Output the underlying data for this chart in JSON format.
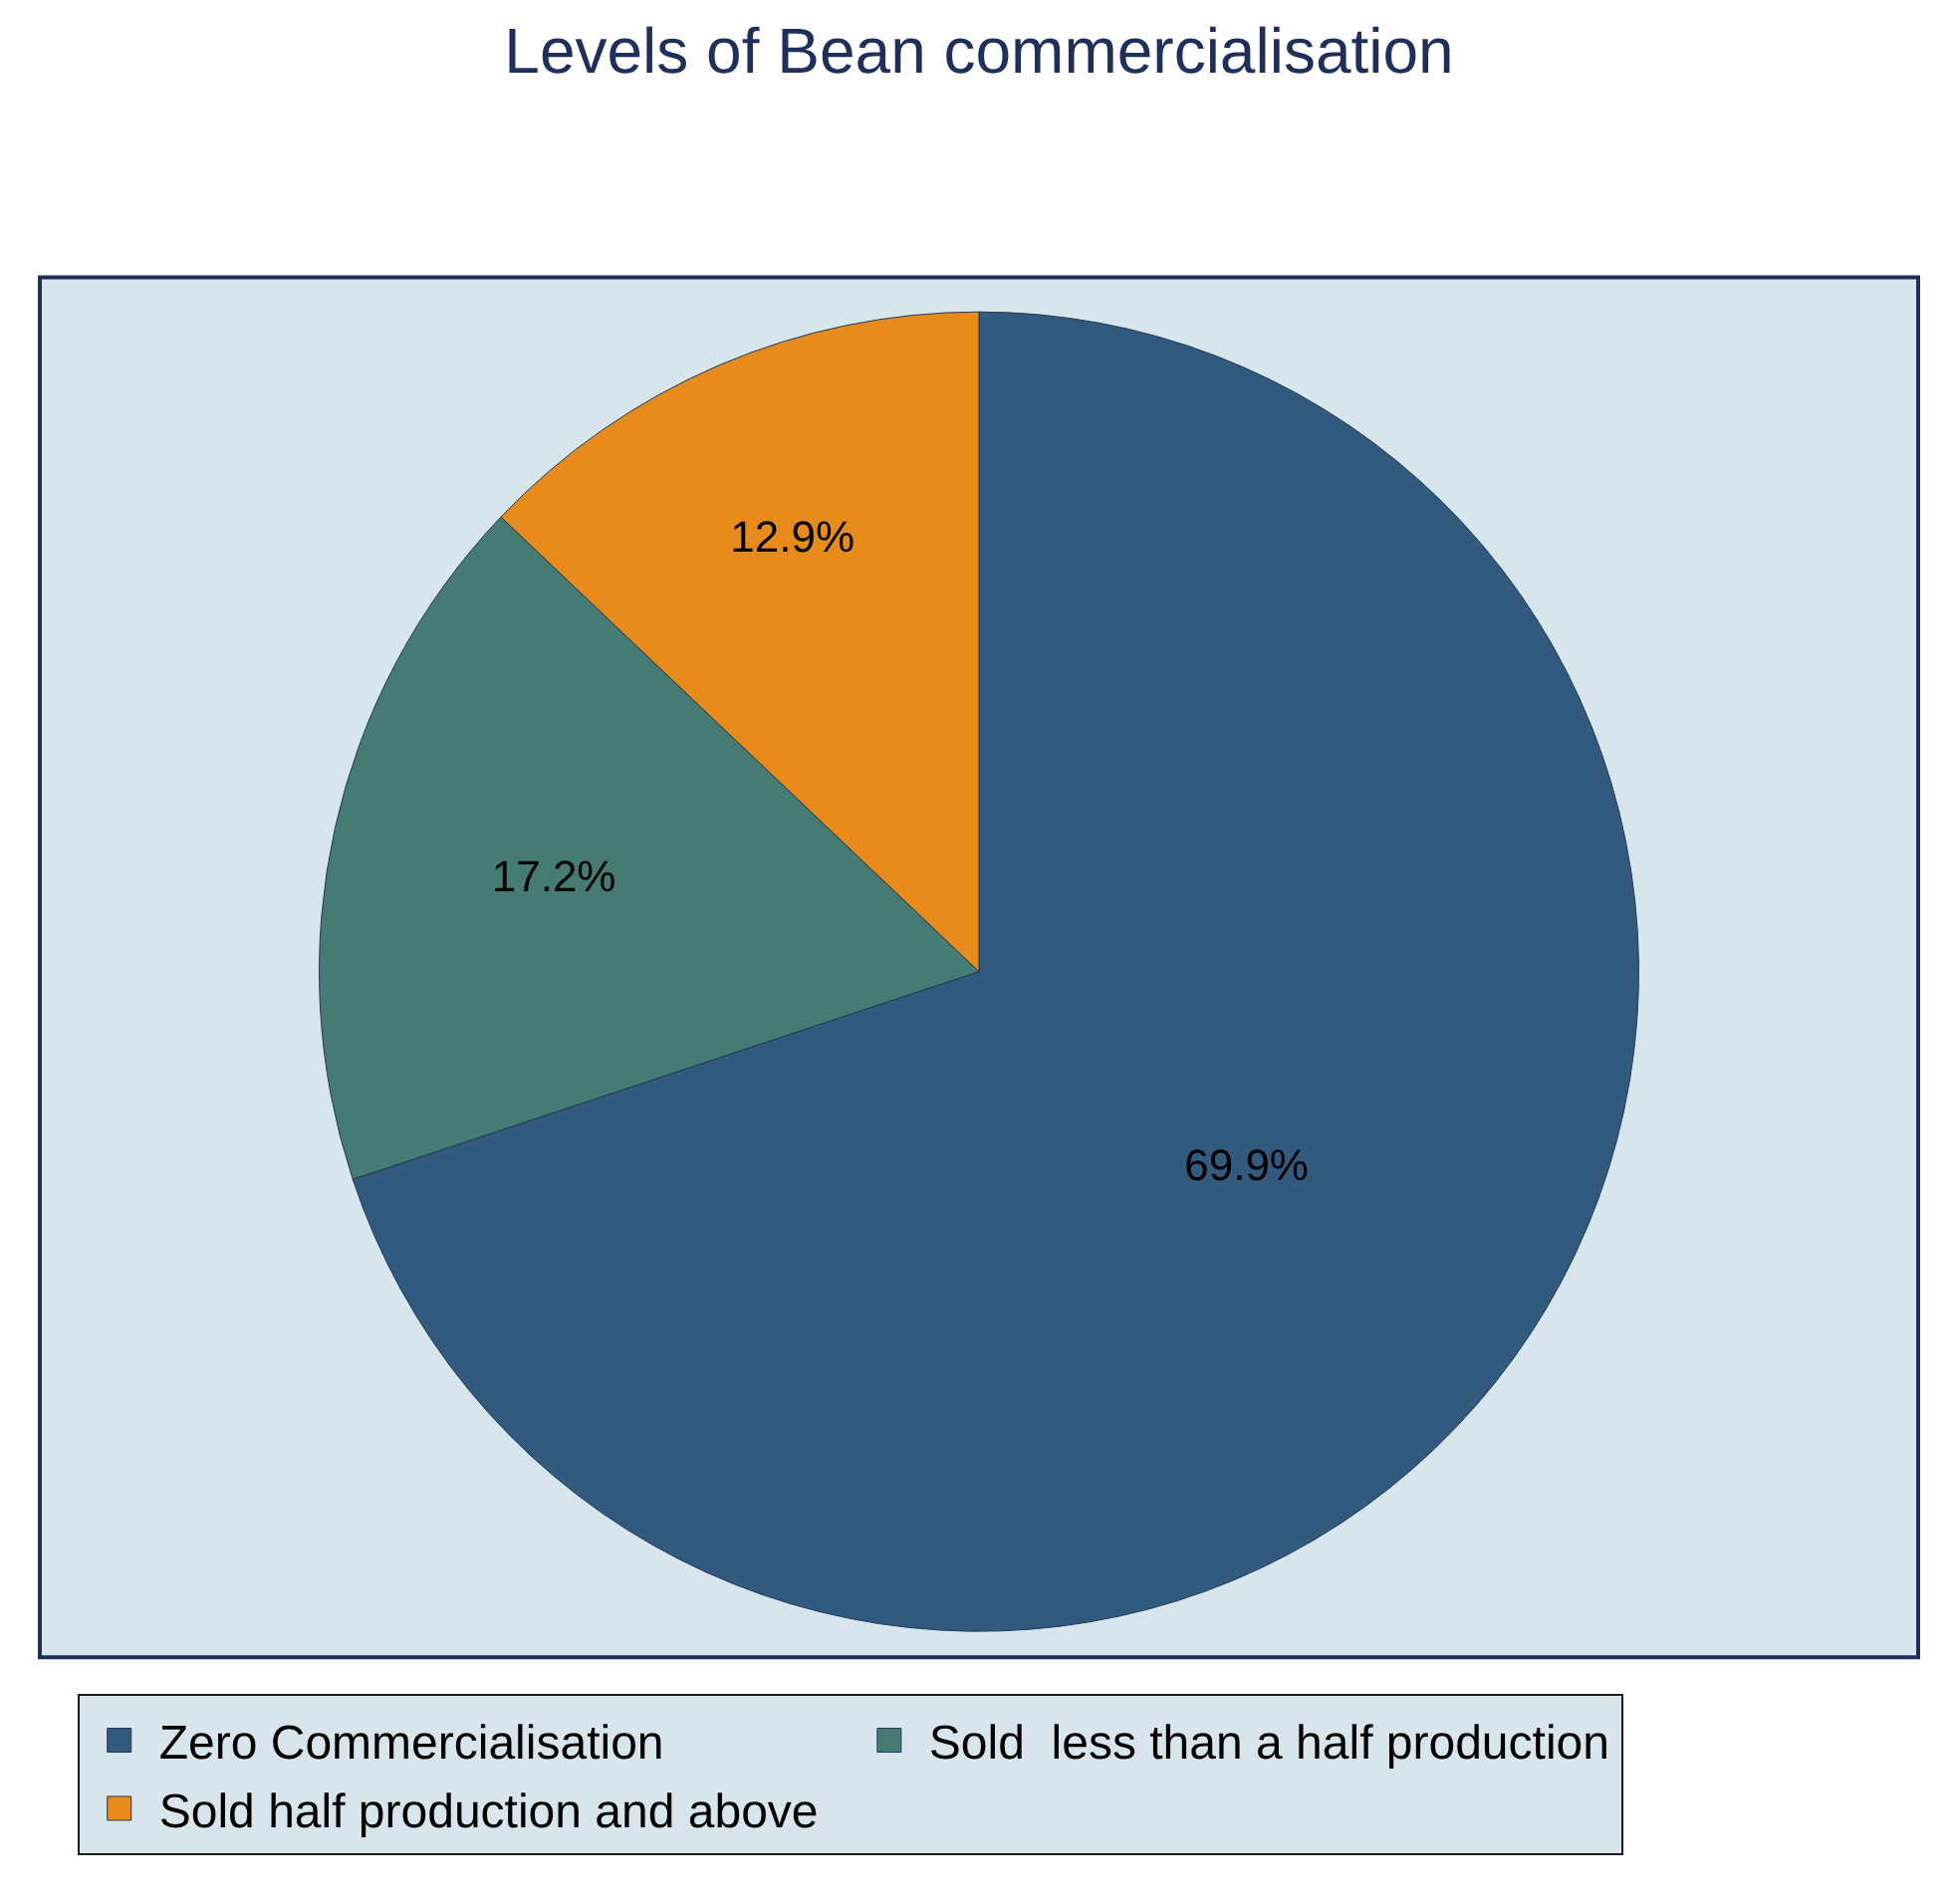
{
  "chart_data": {
    "type": "pie",
    "title": "Levels of Bean commercialisation",
    "categories": [
      "Zero Commercialisation",
      "Sold  less than a half production",
      "Sold half production and above"
    ],
    "values": [
      69.9,
      17.2,
      12.9
    ],
    "colors": [
      "#325a7e",
      "#457b73",
      "#e68b1c"
    ],
    "value_labels": [
      "69.9%",
      "17.2%",
      "12.9%"
    ],
    "legend": "bottom"
  }
}
